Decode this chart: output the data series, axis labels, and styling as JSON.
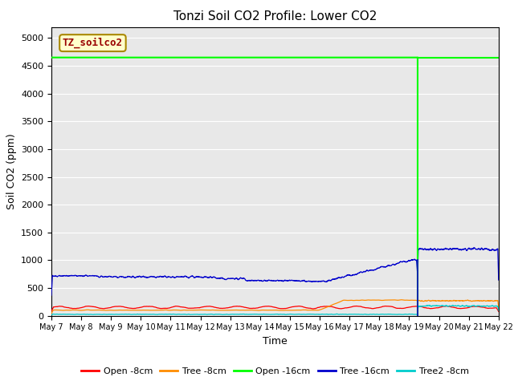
{
  "title": "Tonzi Soil CO2 Profile: Lower CO2",
  "xlabel": "Time",
  "ylabel": "Soil CO2 (ppm)",
  "ylim": [
    0,
    5200
  ],
  "yticks": [
    0,
    500,
    1000,
    1500,
    2000,
    2500,
    3000,
    3500,
    4000,
    4500,
    5000
  ],
  "background_color": "#e8e8e8",
  "title_fontsize": 11,
  "label_fontsize": 9,
  "tick_fontsize": 8,
  "annotation_text": "TZ_soilco2",
  "annotation_color": "#990000",
  "annotation_bg": "#ffffcc",
  "annotation_border": "#aa8800",
  "open_8_color": "#ff0000",
  "tree_8_color": "#ff8c00",
  "open_16_color": "#00ff00",
  "tree_16_color": "#0000cc",
  "tree2_8_color": "#00cccc",
  "open_16_value": 4650,
  "green_drop_day": 12.28,
  "blue_drop_day": 12.28,
  "num_points": 4000
}
